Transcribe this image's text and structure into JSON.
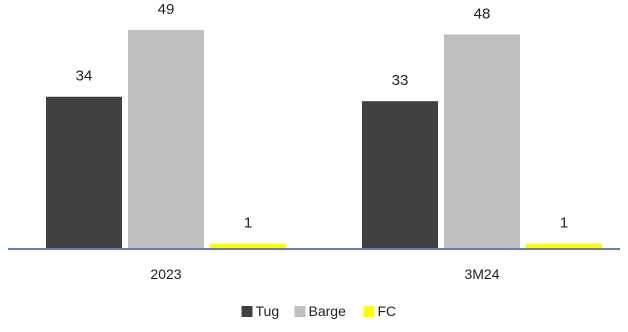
{
  "chart_data": {
    "type": "bar",
    "categories": [
      "2023",
      "3M24"
    ],
    "series": [
      {
        "name": "Tug",
        "values": [
          34,
          33
        ],
        "color": "#404040"
      },
      {
        "name": "Barge",
        "values": [
          49,
          48
        ],
        "color": "#bfbfbf"
      },
      {
        "name": "FC",
        "values": [
          1,
          1
        ],
        "color": "#ffff00"
      }
    ],
    "ylim": [
      0,
      55
    ],
    "axis_color": "#2f5597",
    "data_labels": true,
    "grid": false,
    "legend": "bottom-center"
  }
}
